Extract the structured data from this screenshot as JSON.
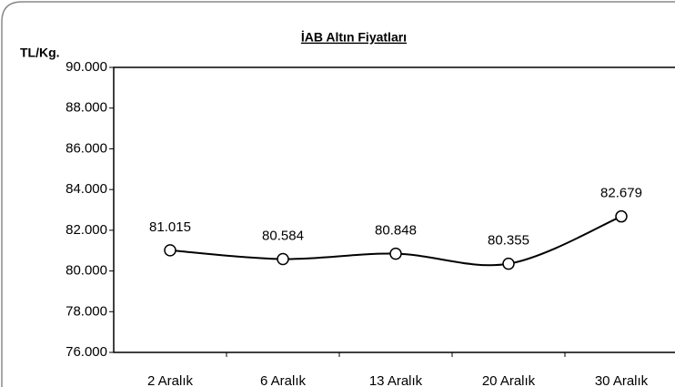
{
  "chart_data": {
    "type": "line",
    "title": "İAB Altın Fiyatları",
    "y_label": "TL/Kg.",
    "categories": [
      "2 Aralık",
      "6 Aralık",
      "13 Aralık",
      "20 Aralık",
      "30 Aralık"
    ],
    "values": [
      81015,
      80584,
      80848,
      80355,
      82679
    ],
    "value_labels": [
      "81.015",
      "80.584",
      "80.848",
      "80.355",
      "82.679"
    ],
    "color": "#000000",
    "ylim": [
      76000,
      90000
    ],
    "yticks": [
      {
        "value": 76000,
        "label": "76.000"
      },
      {
        "value": 78000,
        "label": "78.000"
      },
      {
        "value": 80000,
        "label": "80.000"
      },
      {
        "value": 82000,
        "label": "82.000"
      },
      {
        "value": 84000,
        "label": "84.000"
      },
      {
        "value": 86000,
        "label": "86.000"
      },
      {
        "value": 88000,
        "label": "88.000"
      },
      {
        "value": 90000,
        "label": "90.000"
      }
    ],
    "smooth": true
  }
}
